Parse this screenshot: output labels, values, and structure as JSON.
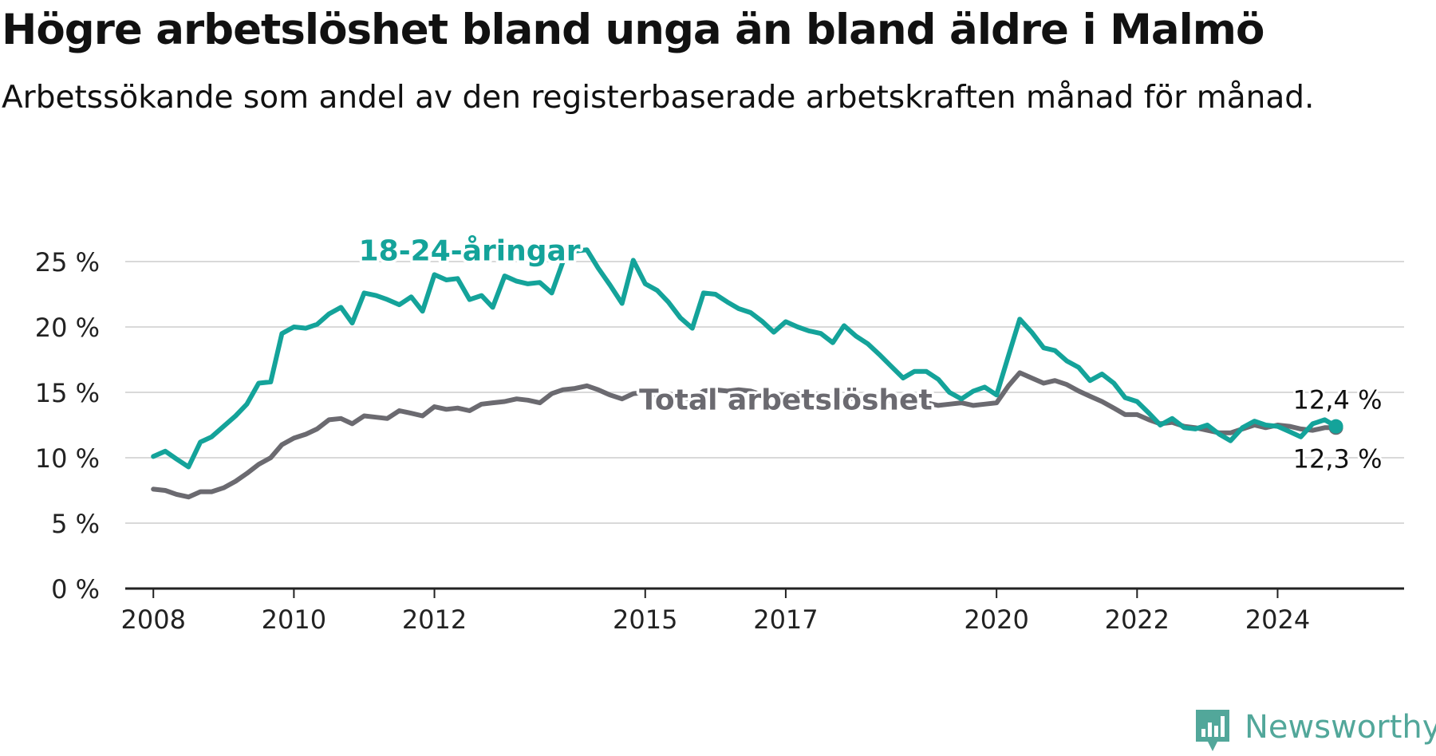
{
  "header": {
    "title": "Högre arbetslöshet bland unga än bland äldre i Malmö",
    "subtitle": "Arbetssökande som andel av den registerbaserade arbetskraften månad för månad."
  },
  "brand": {
    "name": "Newsworthy",
    "color": "#52a79a"
  },
  "chart_data": {
    "type": "line",
    "x_unit": "year",
    "x_range": [
      2007.6,
      2025.8
    ],
    "ylim": [
      0,
      25
    ],
    "y_ticks": [
      {
        "value": 0,
        "label": "0 %"
      },
      {
        "value": 5,
        "label": "5 %"
      },
      {
        "value": 10,
        "label": "10 %"
      },
      {
        "value": 15,
        "label": "15 %"
      },
      {
        "value": 20,
        "label": "20 %"
      },
      {
        "value": 25,
        "label": "25 %"
      }
    ],
    "x_ticks": [
      {
        "value": 2008,
        "label": "2008"
      },
      {
        "value": 2010,
        "label": "2010"
      },
      {
        "value": 2012,
        "label": "2012"
      },
      {
        "value": 2015,
        "label": "2015"
      },
      {
        "value": 2017,
        "label": "2017"
      },
      {
        "value": 2020,
        "label": "2020"
      },
      {
        "value": 2022,
        "label": "2022"
      },
      {
        "value": 2024,
        "label": "2024"
      }
    ],
    "grid": "horizontal",
    "series": [
      {
        "name": "Total arbetslöshet",
        "color": "#6b6a70",
        "label_at": [
          2017.0,
          13.7
        ],
        "end_label": "12,3 %",
        "points": [
          [
            2008.0,
            7.6
          ],
          [
            2008.17,
            7.5
          ],
          [
            2008.33,
            7.2
          ],
          [
            2008.5,
            7.0
          ],
          [
            2008.67,
            7.4
          ],
          [
            2008.83,
            7.4
          ],
          [
            2009.0,
            7.7
          ],
          [
            2009.17,
            8.2
          ],
          [
            2009.33,
            8.8
          ],
          [
            2009.5,
            9.5
          ],
          [
            2009.67,
            10.0
          ],
          [
            2009.83,
            11.0
          ],
          [
            2010.0,
            11.5
          ],
          [
            2010.17,
            11.8
          ],
          [
            2010.33,
            12.2
          ],
          [
            2010.5,
            12.9
          ],
          [
            2010.67,
            13.0
          ],
          [
            2010.83,
            12.6
          ],
          [
            2011.0,
            13.2
          ],
          [
            2011.17,
            13.1
          ],
          [
            2011.33,
            13.0
          ],
          [
            2011.5,
            13.6
          ],
          [
            2011.67,
            13.4
          ],
          [
            2011.83,
            13.2
          ],
          [
            2012.0,
            13.9
          ],
          [
            2012.17,
            13.7
          ],
          [
            2012.33,
            13.8
          ],
          [
            2012.5,
            13.6
          ],
          [
            2012.67,
            14.1
          ],
          [
            2012.83,
            14.2
          ],
          [
            2013.0,
            14.3
          ],
          [
            2013.17,
            14.5
          ],
          [
            2013.33,
            14.4
          ],
          [
            2013.5,
            14.2
          ],
          [
            2013.67,
            14.9
          ],
          [
            2013.83,
            15.2
          ],
          [
            2014.0,
            15.3
          ],
          [
            2014.17,
            15.5
          ],
          [
            2014.33,
            15.2
          ],
          [
            2014.5,
            14.8
          ],
          [
            2014.67,
            14.5
          ],
          [
            2014.83,
            14.9
          ],
          [
            2015.0,
            15.0
          ],
          [
            2015.17,
            14.8
          ],
          [
            2015.33,
            14.9
          ],
          [
            2015.5,
            14.6
          ],
          [
            2015.67,
            14.5
          ],
          [
            2015.83,
            15.1
          ],
          [
            2016.0,
            15.2
          ],
          [
            2016.17,
            15.1
          ],
          [
            2016.33,
            15.2
          ],
          [
            2016.5,
            15.1
          ],
          [
            2016.67,
            14.8
          ],
          [
            2016.83,
            14.8
          ],
          [
            2017.0,
            14.8
          ],
          [
            2017.17,
            14.9
          ],
          [
            2017.33,
            14.8
          ],
          [
            2017.5,
            14.9
          ],
          [
            2017.67,
            14.6
          ],
          [
            2017.83,
            14.6
          ],
          [
            2018.0,
            14.5
          ],
          [
            2018.17,
            14.6
          ],
          [
            2018.33,
            14.4
          ],
          [
            2018.5,
            14.3
          ],
          [
            2018.67,
            14.2
          ],
          [
            2018.83,
            14.1
          ],
          [
            2019.0,
            14.2
          ],
          [
            2019.17,
            14.0
          ],
          [
            2019.33,
            14.1
          ],
          [
            2019.5,
            14.2
          ],
          [
            2019.67,
            14.0
          ],
          [
            2019.83,
            14.1
          ],
          [
            2020.0,
            14.2
          ],
          [
            2020.17,
            15.5
          ],
          [
            2020.33,
            16.5
          ],
          [
            2020.5,
            16.1
          ],
          [
            2020.67,
            15.7
          ],
          [
            2020.83,
            15.9
          ],
          [
            2021.0,
            15.6
          ],
          [
            2021.17,
            15.1
          ],
          [
            2021.33,
            14.7
          ],
          [
            2021.5,
            14.3
          ],
          [
            2021.67,
            13.8
          ],
          [
            2021.83,
            13.3
          ],
          [
            2022.0,
            13.3
          ],
          [
            2022.17,
            12.9
          ],
          [
            2022.33,
            12.6
          ],
          [
            2022.5,
            12.7
          ],
          [
            2022.67,
            12.4
          ],
          [
            2022.83,
            12.3
          ],
          [
            2023.0,
            12.1
          ],
          [
            2023.17,
            11.9
          ],
          [
            2023.33,
            11.9
          ],
          [
            2023.5,
            12.2
          ],
          [
            2023.67,
            12.5
          ],
          [
            2023.83,
            12.3
          ],
          [
            2024.0,
            12.5
          ],
          [
            2024.17,
            12.4
          ],
          [
            2024.33,
            12.2
          ],
          [
            2024.5,
            12.1
          ],
          [
            2024.67,
            12.3
          ],
          [
            2024.83,
            12.3
          ]
        ]
      },
      {
        "name": "18-24-åringar",
        "color": "#14a39a",
        "label_at": [
          2012.5,
          25.1
        ],
        "end_label": "12,4 %",
        "points": [
          [
            2008.0,
            10.1
          ],
          [
            2008.17,
            10.5
          ],
          [
            2008.33,
            9.9
          ],
          [
            2008.5,
            9.3
          ],
          [
            2008.67,
            11.2
          ],
          [
            2008.83,
            11.6
          ],
          [
            2009.0,
            12.4
          ],
          [
            2009.17,
            13.2
          ],
          [
            2009.33,
            14.1
          ],
          [
            2009.5,
            15.7
          ],
          [
            2009.67,
            15.8
          ],
          [
            2009.83,
            19.5
          ],
          [
            2010.0,
            20.0
          ],
          [
            2010.17,
            19.9
          ],
          [
            2010.33,
            20.2
          ],
          [
            2010.5,
            21.0
          ],
          [
            2010.67,
            21.5
          ],
          [
            2010.83,
            20.3
          ],
          [
            2011.0,
            22.6
          ],
          [
            2011.17,
            22.4
          ],
          [
            2011.33,
            22.1
          ],
          [
            2011.5,
            21.7
          ],
          [
            2011.67,
            22.3
          ],
          [
            2011.83,
            21.2
          ],
          [
            2012.0,
            24.0
          ],
          [
            2012.17,
            23.6
          ],
          [
            2012.33,
            23.7
          ],
          [
            2012.5,
            22.1
          ],
          [
            2012.67,
            22.4
          ],
          [
            2012.83,
            21.5
          ],
          [
            2013.0,
            23.9
          ],
          [
            2013.17,
            23.5
          ],
          [
            2013.33,
            23.3
          ],
          [
            2013.5,
            23.4
          ],
          [
            2013.67,
            22.6
          ],
          [
            2013.83,
            25.0
          ],
          [
            2014.0,
            25.8
          ],
          [
            2014.17,
            25.9
          ],
          [
            2014.33,
            24.5
          ],
          [
            2014.5,
            23.2
          ],
          [
            2014.67,
            21.8
          ],
          [
            2014.83,
            25.1
          ],
          [
            2015.0,
            23.3
          ],
          [
            2015.17,
            22.8
          ],
          [
            2015.33,
            21.9
          ],
          [
            2015.5,
            20.7
          ],
          [
            2015.67,
            19.9
          ],
          [
            2015.83,
            22.6
          ],
          [
            2016.0,
            22.5
          ],
          [
            2016.17,
            21.9
          ],
          [
            2016.33,
            21.4
          ],
          [
            2016.5,
            21.1
          ],
          [
            2016.67,
            20.4
          ],
          [
            2016.83,
            19.6
          ],
          [
            2017.0,
            20.4
          ],
          [
            2017.17,
            20.0
          ],
          [
            2017.33,
            19.7
          ],
          [
            2017.5,
            19.5
          ],
          [
            2017.67,
            18.8
          ],
          [
            2017.83,
            20.1
          ],
          [
            2018.0,
            19.3
          ],
          [
            2018.17,
            18.7
          ],
          [
            2018.33,
            17.9
          ],
          [
            2018.5,
            17.0
          ],
          [
            2018.67,
            16.1
          ],
          [
            2018.83,
            16.6
          ],
          [
            2019.0,
            16.6
          ],
          [
            2019.17,
            16.0
          ],
          [
            2019.33,
            15.0
          ],
          [
            2019.5,
            14.5
          ],
          [
            2019.67,
            15.1
          ],
          [
            2019.83,
            15.4
          ],
          [
            2020.0,
            14.8
          ],
          [
            2020.17,
            17.8
          ],
          [
            2020.33,
            20.6
          ],
          [
            2020.5,
            19.6
          ],
          [
            2020.67,
            18.4
          ],
          [
            2020.83,
            18.2
          ],
          [
            2021.0,
            17.4
          ],
          [
            2021.17,
            16.9
          ],
          [
            2021.33,
            15.9
          ],
          [
            2021.5,
            16.4
          ],
          [
            2021.67,
            15.7
          ],
          [
            2021.83,
            14.6
          ],
          [
            2022.0,
            14.3
          ],
          [
            2022.17,
            13.4
          ],
          [
            2022.33,
            12.5
          ],
          [
            2022.5,
            13.0
          ],
          [
            2022.67,
            12.3
          ],
          [
            2022.83,
            12.2
          ],
          [
            2023.0,
            12.5
          ],
          [
            2023.17,
            11.8
          ],
          [
            2023.33,
            11.3
          ],
          [
            2023.5,
            12.3
          ],
          [
            2023.67,
            12.8
          ],
          [
            2023.83,
            12.5
          ],
          [
            2024.0,
            12.4
          ],
          [
            2024.17,
            12.0
          ],
          [
            2024.33,
            11.6
          ],
          [
            2024.5,
            12.6
          ],
          [
            2024.67,
            12.9
          ],
          [
            2024.83,
            12.4
          ]
        ]
      }
    ]
  }
}
